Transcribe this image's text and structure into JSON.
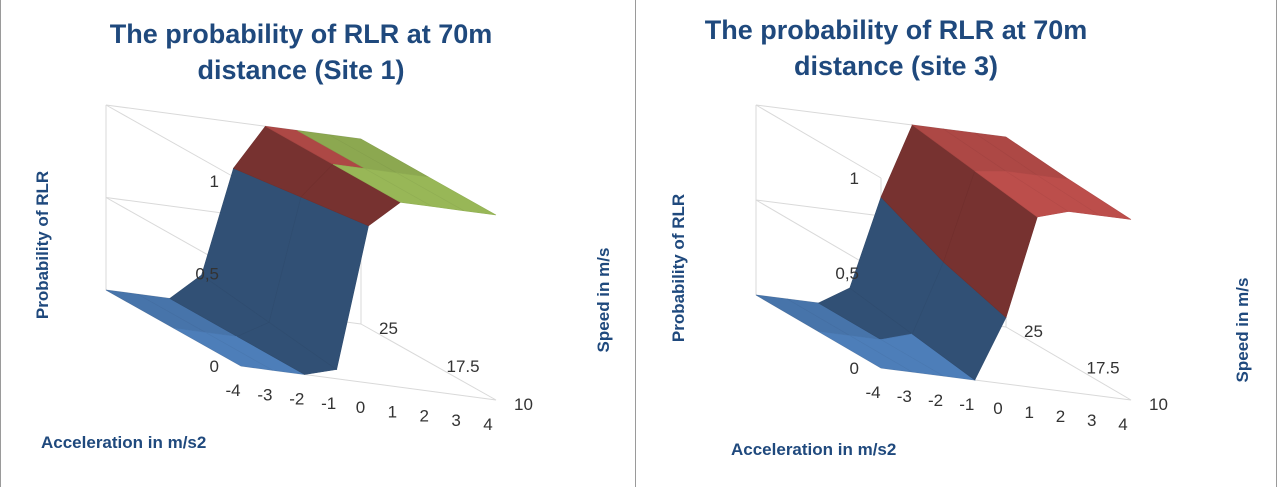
{
  "chart_data": [
    {
      "type": "surface",
      "title": "The probability of RLR at 70m\ndistance (Site 1)",
      "xlabel": "Acceleration in m/s2",
      "ylabel": "Probability of RLR",
      "zlabel": "Speed in m/s",
      "x": [
        -4,
        -3,
        -2,
        -1,
        0,
        1,
        2,
        3,
        4
      ],
      "y_ticks": [
        "0",
        "0,5",
        "1"
      ],
      "ylim": [
        0,
        1
      ],
      "z": [
        10,
        17.5,
        25
      ],
      "series": [
        {
          "name": "10",
          "values": [
            0,
            0,
            0,
            0.05,
            0.85,
            1,
            1,
            1,
            1
          ]
        },
        {
          "name": "17.5",
          "values": [
            0,
            0,
            0,
            0.1,
            0.8,
            1,
            1,
            1,
            1
          ]
        },
        {
          "name": "25",
          "values": [
            0,
            0,
            0,
            0.15,
            0.75,
            1,
            1,
            1,
            1
          ]
        }
      ],
      "color_bands": [
        {
          "range": "0-0,5",
          "color": "#4f81bd"
        },
        {
          "range": "0,5-1",
          "color": "#c0504d"
        },
        {
          "range": "1-1,5",
          "color": "#9bbb59"
        }
      ]
    },
    {
      "type": "surface",
      "title": "The probability of RLR at 70m\ndistance (site 3)",
      "xlabel": "Acceleration in m/s2",
      "ylabel": "Probability of RLR",
      "zlabel": "Speed in m/s",
      "x": [
        -4,
        -3,
        -2,
        -1,
        0,
        1,
        2,
        3,
        4
      ],
      "y_ticks": [
        "0",
        "0,5",
        "1"
      ],
      "ylim": [
        0,
        1
      ],
      "z": [
        10,
        17.5,
        25
      ],
      "series": [
        {
          "name": "10",
          "values": [
            0,
            0,
            0,
            0,
            0.35,
            0.9,
            0.95,
            0.95,
            0.95
          ]
        },
        {
          "name": "17.5",
          "values": [
            0,
            0,
            0,
            0.05,
            0.45,
            0.95,
            0.97,
            0.97,
            0.97
          ]
        },
        {
          "name": "25",
          "values": [
            0,
            0,
            0,
            0.1,
            0.6,
            1,
            1,
            1,
            1
          ]
        }
      ],
      "color_bands": [
        {
          "range": "0-0,5",
          "color": "#4f81bd"
        },
        {
          "range": "0,5-1",
          "color": "#c0504d"
        }
      ]
    }
  ]
}
